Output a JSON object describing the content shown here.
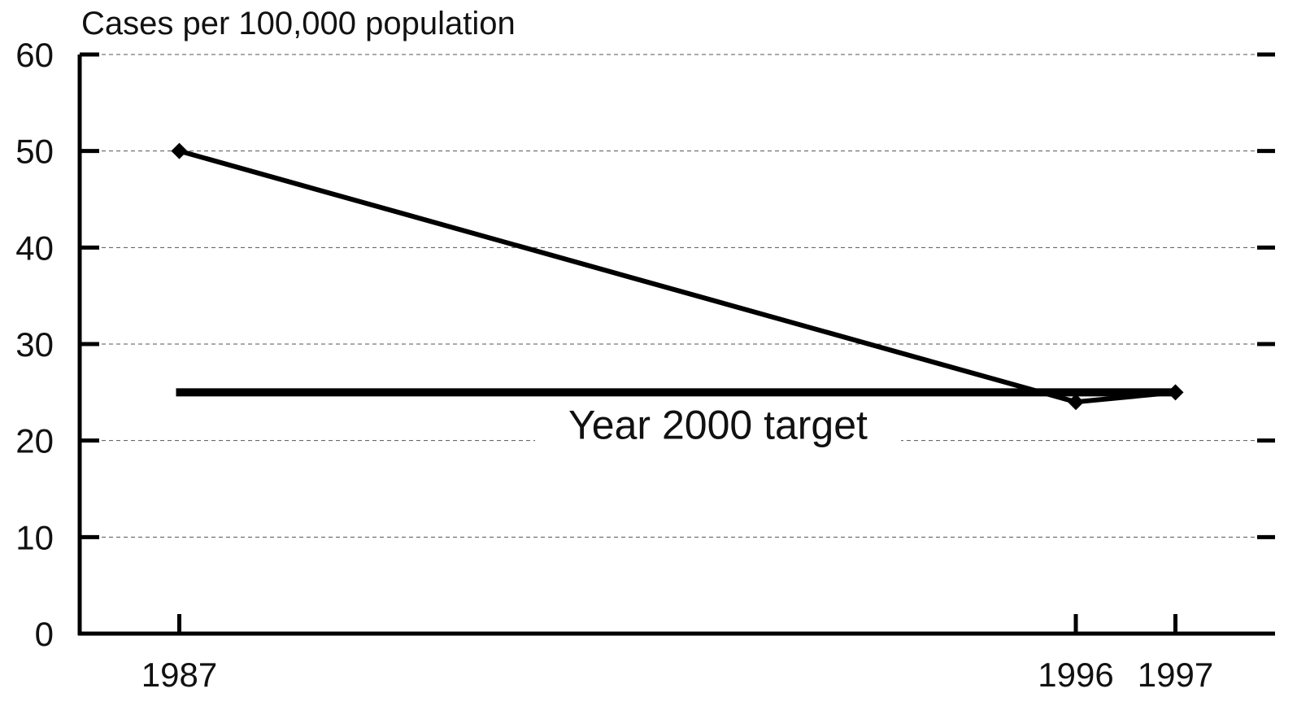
{
  "chart_data": {
    "type": "line",
    "title": "",
    "ylabel": "Cases per 100,000 population",
    "xlabel": "",
    "ylim": [
      0,
      60
    ],
    "yticks": [
      0,
      10,
      20,
      30,
      40,
      50,
      60
    ],
    "xlim": [
      1986,
      1998
    ],
    "xticks": [
      1987,
      1996,
      1997
    ],
    "grid": true,
    "series": [
      {
        "x": [
          1987,
          1996,
          1997
        ],
        "values": [
          50,
          24,
          25
        ]
      }
    ],
    "target": {
      "label": "Year 2000 target",
      "value": 25,
      "x_start": 1987,
      "x_end": 1997
    }
  }
}
